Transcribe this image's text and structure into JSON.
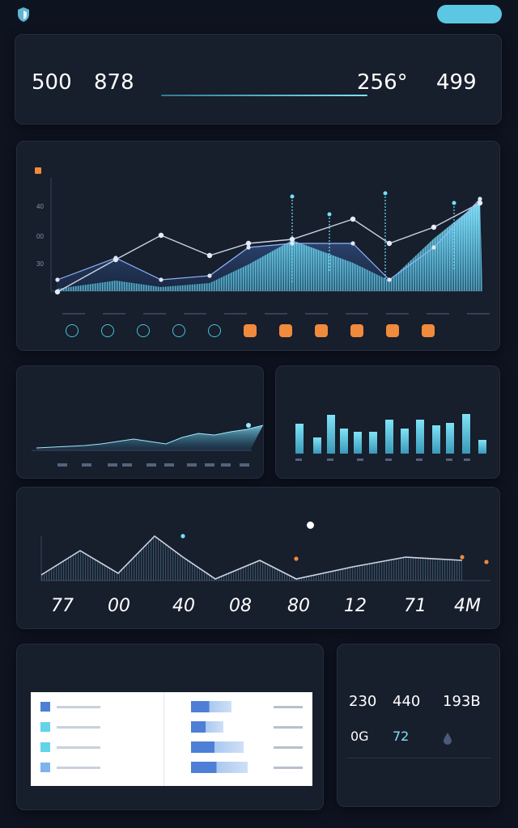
{
  "header": {
    "brand": "",
    "nav_left": "",
    "nav_right": "",
    "button": ""
  },
  "stats": {
    "label_left": "",
    "value1": "500",
    "value2": "878",
    "sub_left": "",
    "sub_value2": "",
    "center_title": "",
    "center_segments": [
      "",
      "",
      ""
    ],
    "value3": "256°",
    "value4": "499",
    "label_right": ""
  },
  "main_chart": {
    "legend": "",
    "yticks": [
      "40",
      "00",
      "30"
    ]
  },
  "area_panel": {
    "title": "",
    "subtitle": "",
    "link": ""
  },
  "bar_panel": {
    "title": "",
    "subtitle": ""
  },
  "line_panel": {
    "label": "",
    "title": "",
    "legend": "",
    "values": [
      "77",
      "00",
      "40",
      "08",
      "80",
      "12",
      "71",
      "4M"
    ]
  },
  "table_panel": {
    "title": "",
    "subtitle": ""
  },
  "kpi_panel": {
    "title": "",
    "values": [
      "230",
      "440",
      "193B"
    ],
    "small_values": [
      "0G",
      "72"
    ]
  },
  "icons": {
    "logo": "shield-logo-icon",
    "chart_controls": [
      "chat-icon",
      "chat-icon",
      "chat-icon",
      "gesture-icon",
      "bookmark-icon",
      "camera-icon",
      "camera-icon",
      "camera-icon",
      "camera-icon",
      "camera-icon",
      "camera-icon"
    ]
  },
  "colors": {
    "background": "#0e1320",
    "panel": "#171e2c",
    "accent": "#5cc7e3",
    "accent_light": "#7fe3f6",
    "orange": "#f08a3c",
    "bar_blue": "#4d7fd6"
  },
  "chart_data": [
    {
      "type": "line",
      "series": [
        {
          "values": [
            360,
            320,
            290,
            315,
            300,
            295,
            270,
            300,
            280,
            250
          ]
        },
        {
          "values": [
            345,
            318,
            345,
            340,
            305,
            300,
            300,
            345,
            305,
            245
          ]
        }
      ]
    },
    {
      "type": "area",
      "values": [
        553,
        552,
        551,
        550,
        548,
        545,
        542,
        545,
        548,
        540,
        535,
        537,
        533,
        530,
        525
      ]
    },
    {
      "type": "bar",
      "values": [
        37,
        20,
        48,
        31,
        27,
        27,
        42,
        31,
        42,
        35,
        38,
        49,
        17
      ]
    },
    {
      "type": "line",
      "values": [
        710,
        680,
        708,
        662,
        688,
        715,
        692,
        715,
        700,
        688,
        692
      ]
    },
    {
      "type": "bar",
      "values": [
        55,
        45,
        70,
        75
      ]
    }
  ]
}
